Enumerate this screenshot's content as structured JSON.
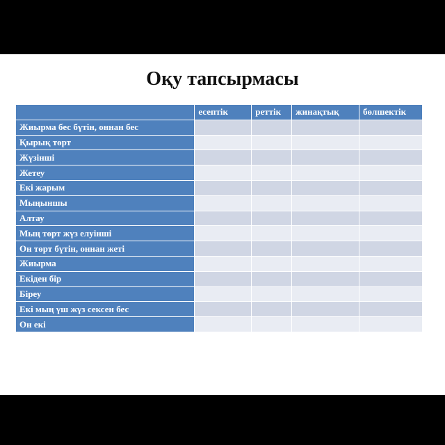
{
  "slide": {
    "title": "Оқу тапсырмасы",
    "table": {
      "headers": [
        "",
        "есептік",
        "реттік",
        "жинақтық",
        "бөлшектік"
      ],
      "rows": [
        "Жиырма бес бүтін, оннан бес",
        "Қырық төрт",
        "Жүзінші",
        "Жетеу",
        "Екі жарым",
        "Мыңыншы",
        "Алтау",
        "Мың төрт жүз елуінші",
        "Он төрт бүтін, оннан жеті",
        "Жиырма",
        "Екіден бір",
        "Біреу",
        "Екі мың үш жүз сексен бес",
        "Он екі"
      ]
    }
  },
  "colors": {
    "header": "#4f81bd",
    "row_dark": "#d0d6e4",
    "row_light": "#e9ecf3"
  }
}
